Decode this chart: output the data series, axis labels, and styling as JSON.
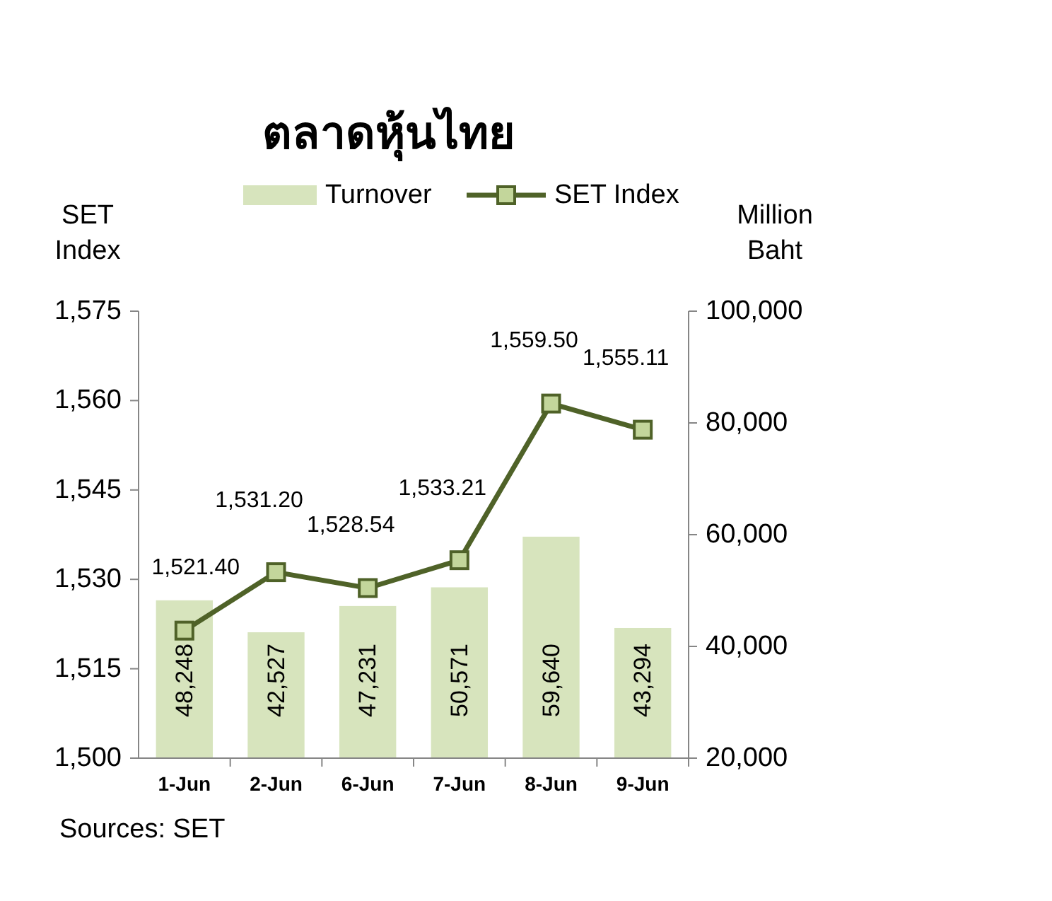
{
  "chart_data": {
    "type": "bar",
    "title": "ตลาดหุ้นไทย",
    "ylabel": "SET Index",
    "y2label": "Million Baht",
    "categories": [
      "1-Jun",
      "2-Jun",
      "6-Jun",
      "7-Jun",
      "8-Jun",
      "9-Jun"
    ],
    "series": [
      {
        "name": "Turnover",
        "axis": "y2",
        "color": "#d7e4bd",
        "values": [
          48248,
          42527,
          47231,
          50571,
          59640,
          43294
        ],
        "value_labels": [
          "48,248",
          "42,527",
          "47,231",
          "50,571",
          "59,640",
          "43,294"
        ]
      },
      {
        "name": "SET Index",
        "type": "line",
        "axis": "y",
        "color": "#4f6228",
        "values": [
          1521.4,
          1531.2,
          1528.54,
          1533.21,
          1559.5,
          1555.11
        ],
        "value_labels": [
          "1,521.40",
          "1,531.20",
          "1,528.54",
          "1,533.21",
          "1,559.50",
          "1,555.11"
        ]
      }
    ],
    "ylim": [
      1500,
      1575
    ],
    "yticks": [
      {
        "value": 1500,
        "label": "1,500"
      },
      {
        "value": 1515,
        "label": "1,515"
      },
      {
        "value": 1530,
        "label": "1,530"
      },
      {
        "value": 1545,
        "label": "1,545"
      },
      {
        "value": 1560,
        "label": "1,560"
      },
      {
        "value": 1575,
        "label": "1,575"
      }
    ],
    "y2lim": [
      20000,
      100000
    ],
    "y2ticks": [
      {
        "value": 20000,
        "label": "20,000"
      },
      {
        "value": 40000,
        "label": "40,000"
      },
      {
        "value": 60000,
        "label": "60,000"
      },
      {
        "value": 80000,
        "label": "80,000"
      },
      {
        "value": 100000,
        "label": "100,000"
      }
    ],
    "legend": "top",
    "marker": "square",
    "grid": false,
    "annotations": [
      "Sources: SET"
    ]
  }
}
